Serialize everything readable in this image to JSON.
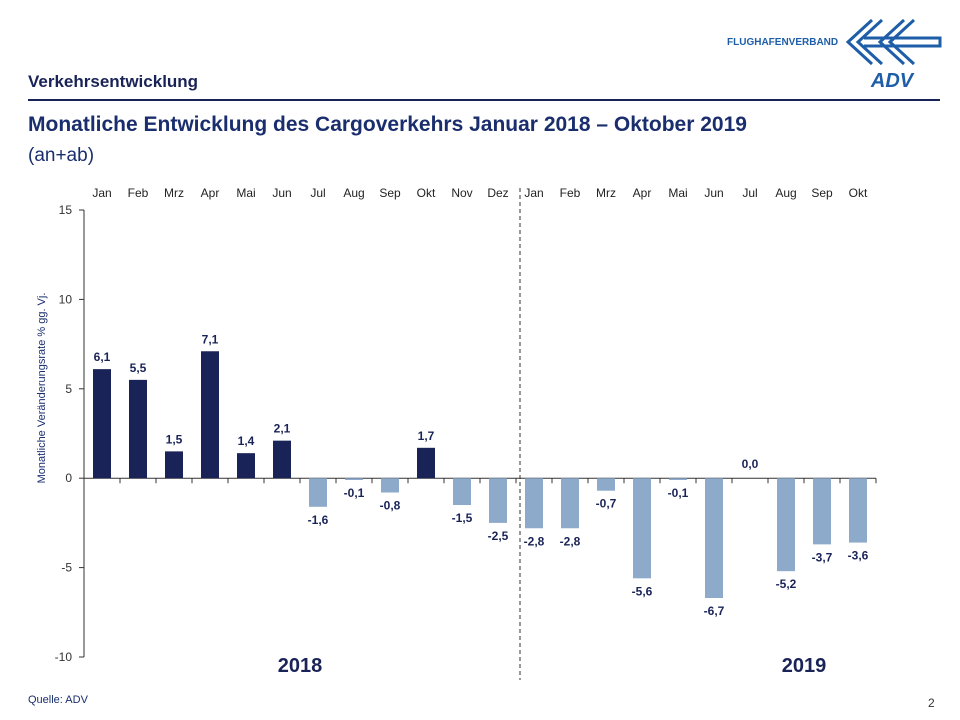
{
  "header": {
    "section": "Verkehrsentwicklung",
    "title": "Monatliche Entwicklung des Cargoverkehrs Januar 2018 – Oktober 2019",
    "subtitle": "(an+ab)",
    "brand_text": "FLUGHAFENVERBAND",
    "logo_text": "ADV"
  },
  "footer": {
    "source": "Quelle: ADV",
    "page": "2"
  },
  "colors": {
    "dark_bar": "#1a2357",
    "light_bar": "#8eaacb",
    "text": "#1a2e6e"
  },
  "chart_data": {
    "type": "bar",
    "ylabel": "Monatliche Veränderungsrate % gg. Vj.",
    "ylim": [
      -10,
      15
    ],
    "yticks": [
      15,
      10,
      5,
      0,
      -5,
      -10
    ],
    "grid": false,
    "categories": [
      "Jan",
      "Feb",
      "Mrz",
      "Apr",
      "Mai",
      "Jun",
      "Jul",
      "Aug",
      "Sep",
      "Okt",
      "Nov",
      "Dez",
      "Jan",
      "Feb",
      "Mrz",
      "Apr",
      "Mai",
      "Jun",
      "Jul",
      "Aug",
      "Sep",
      "Okt"
    ],
    "years": [
      "2018",
      "2019"
    ],
    "values": [
      6.1,
      5.5,
      1.5,
      7.1,
      1.4,
      2.1,
      -1.6,
      -0.1,
      -0.8,
      1.7,
      -1.5,
      -2.5,
      -2.8,
      -2.8,
      -0.7,
      -5.6,
      -0.1,
      -6.7,
      0.0,
      -5.2,
      -3.7,
      -3.6
    ],
    "labels": [
      "6,1",
      "5,5",
      "1,5",
      "7,1",
      "1,4",
      "2,1",
      "-1,6",
      "-0,1",
      "-0,8",
      "1,7",
      "-1,5",
      "-2,5",
      "-2,8",
      "-2,8",
      "-0,7",
      "-5,6",
      "-0,1",
      "-6,7",
      "0,0",
      "-5,2",
      "-3,7",
      "-3,6"
    ]
  }
}
